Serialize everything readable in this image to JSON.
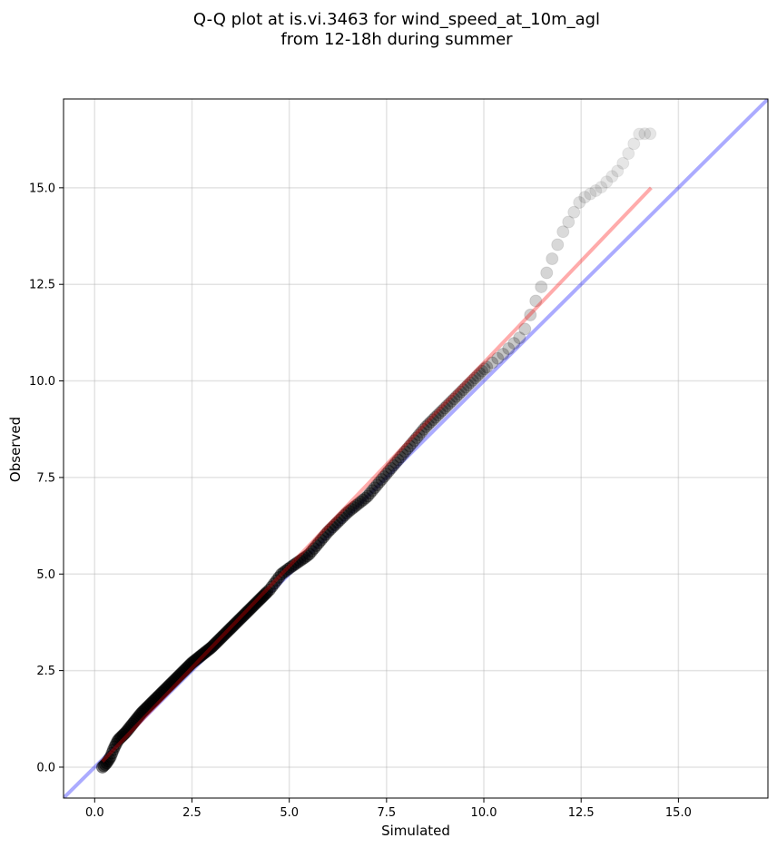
{
  "chart_data": {
    "type": "scatter",
    "title_lines": [
      "Q-Q plot at is.vi.3463 for wind_speed_at_10m_agl",
      "from 12-18h during summer"
    ],
    "xlabel": "Simulated",
    "ylabel": "Observed",
    "xlim": [
      -0.8,
      17.3
    ],
    "ylim": [
      -0.8,
      17.3
    ],
    "xticks": [
      0.0,
      2.5,
      5.0,
      7.5,
      10.0,
      12.5,
      15.0
    ],
    "yticks": [
      0.0,
      2.5,
      5.0,
      7.5,
      10.0,
      12.5,
      15.0
    ],
    "tick_labels": [
      "0.0",
      "2.5",
      "5.0",
      "7.5",
      "10.0",
      "12.5",
      "15.0"
    ],
    "grid": true,
    "quantile_curve": {
      "x": [
        0.2,
        0.3,
        0.4,
        0.5,
        0.6,
        0.8,
        1.0,
        1.2,
        1.5,
        2.0,
        2.5,
        3.0,
        3.5,
        4.0,
        4.5,
        4.8,
        5.0,
        5.5,
        6.0,
        6.5,
        7.0,
        7.5,
        8.0,
        8.5,
        9.0,
        9.5,
        10.0,
        10.5,
        11.0,
        11.5,
        12.0,
        12.5,
        13.0,
        13.5,
        14.0,
        14.3
      ],
      "y": [
        0.0,
        0.1,
        0.25,
        0.5,
        0.7,
        0.9,
        1.15,
        1.4,
        1.7,
        2.2,
        2.7,
        3.1,
        3.6,
        4.1,
        4.6,
        5.0,
        5.15,
        5.5,
        6.1,
        6.6,
        7.0,
        7.6,
        8.2,
        8.8,
        9.3,
        9.8,
        10.3,
        10.7,
        11.2,
        12.5,
        13.8,
        14.7,
        15.0,
        15.5,
        16.4,
        16.4
      ],
      "color": "#000000"
    },
    "identity_line": {
      "x": [
        -0.8,
        17.3
      ],
      "y": [
        -0.8,
        17.3
      ],
      "color": "#0000ff"
    },
    "fit_line": {
      "x": [
        0.2,
        14.3
      ],
      "y": [
        0.15,
        15.0
      ],
      "color": "#ff0000"
    }
  }
}
